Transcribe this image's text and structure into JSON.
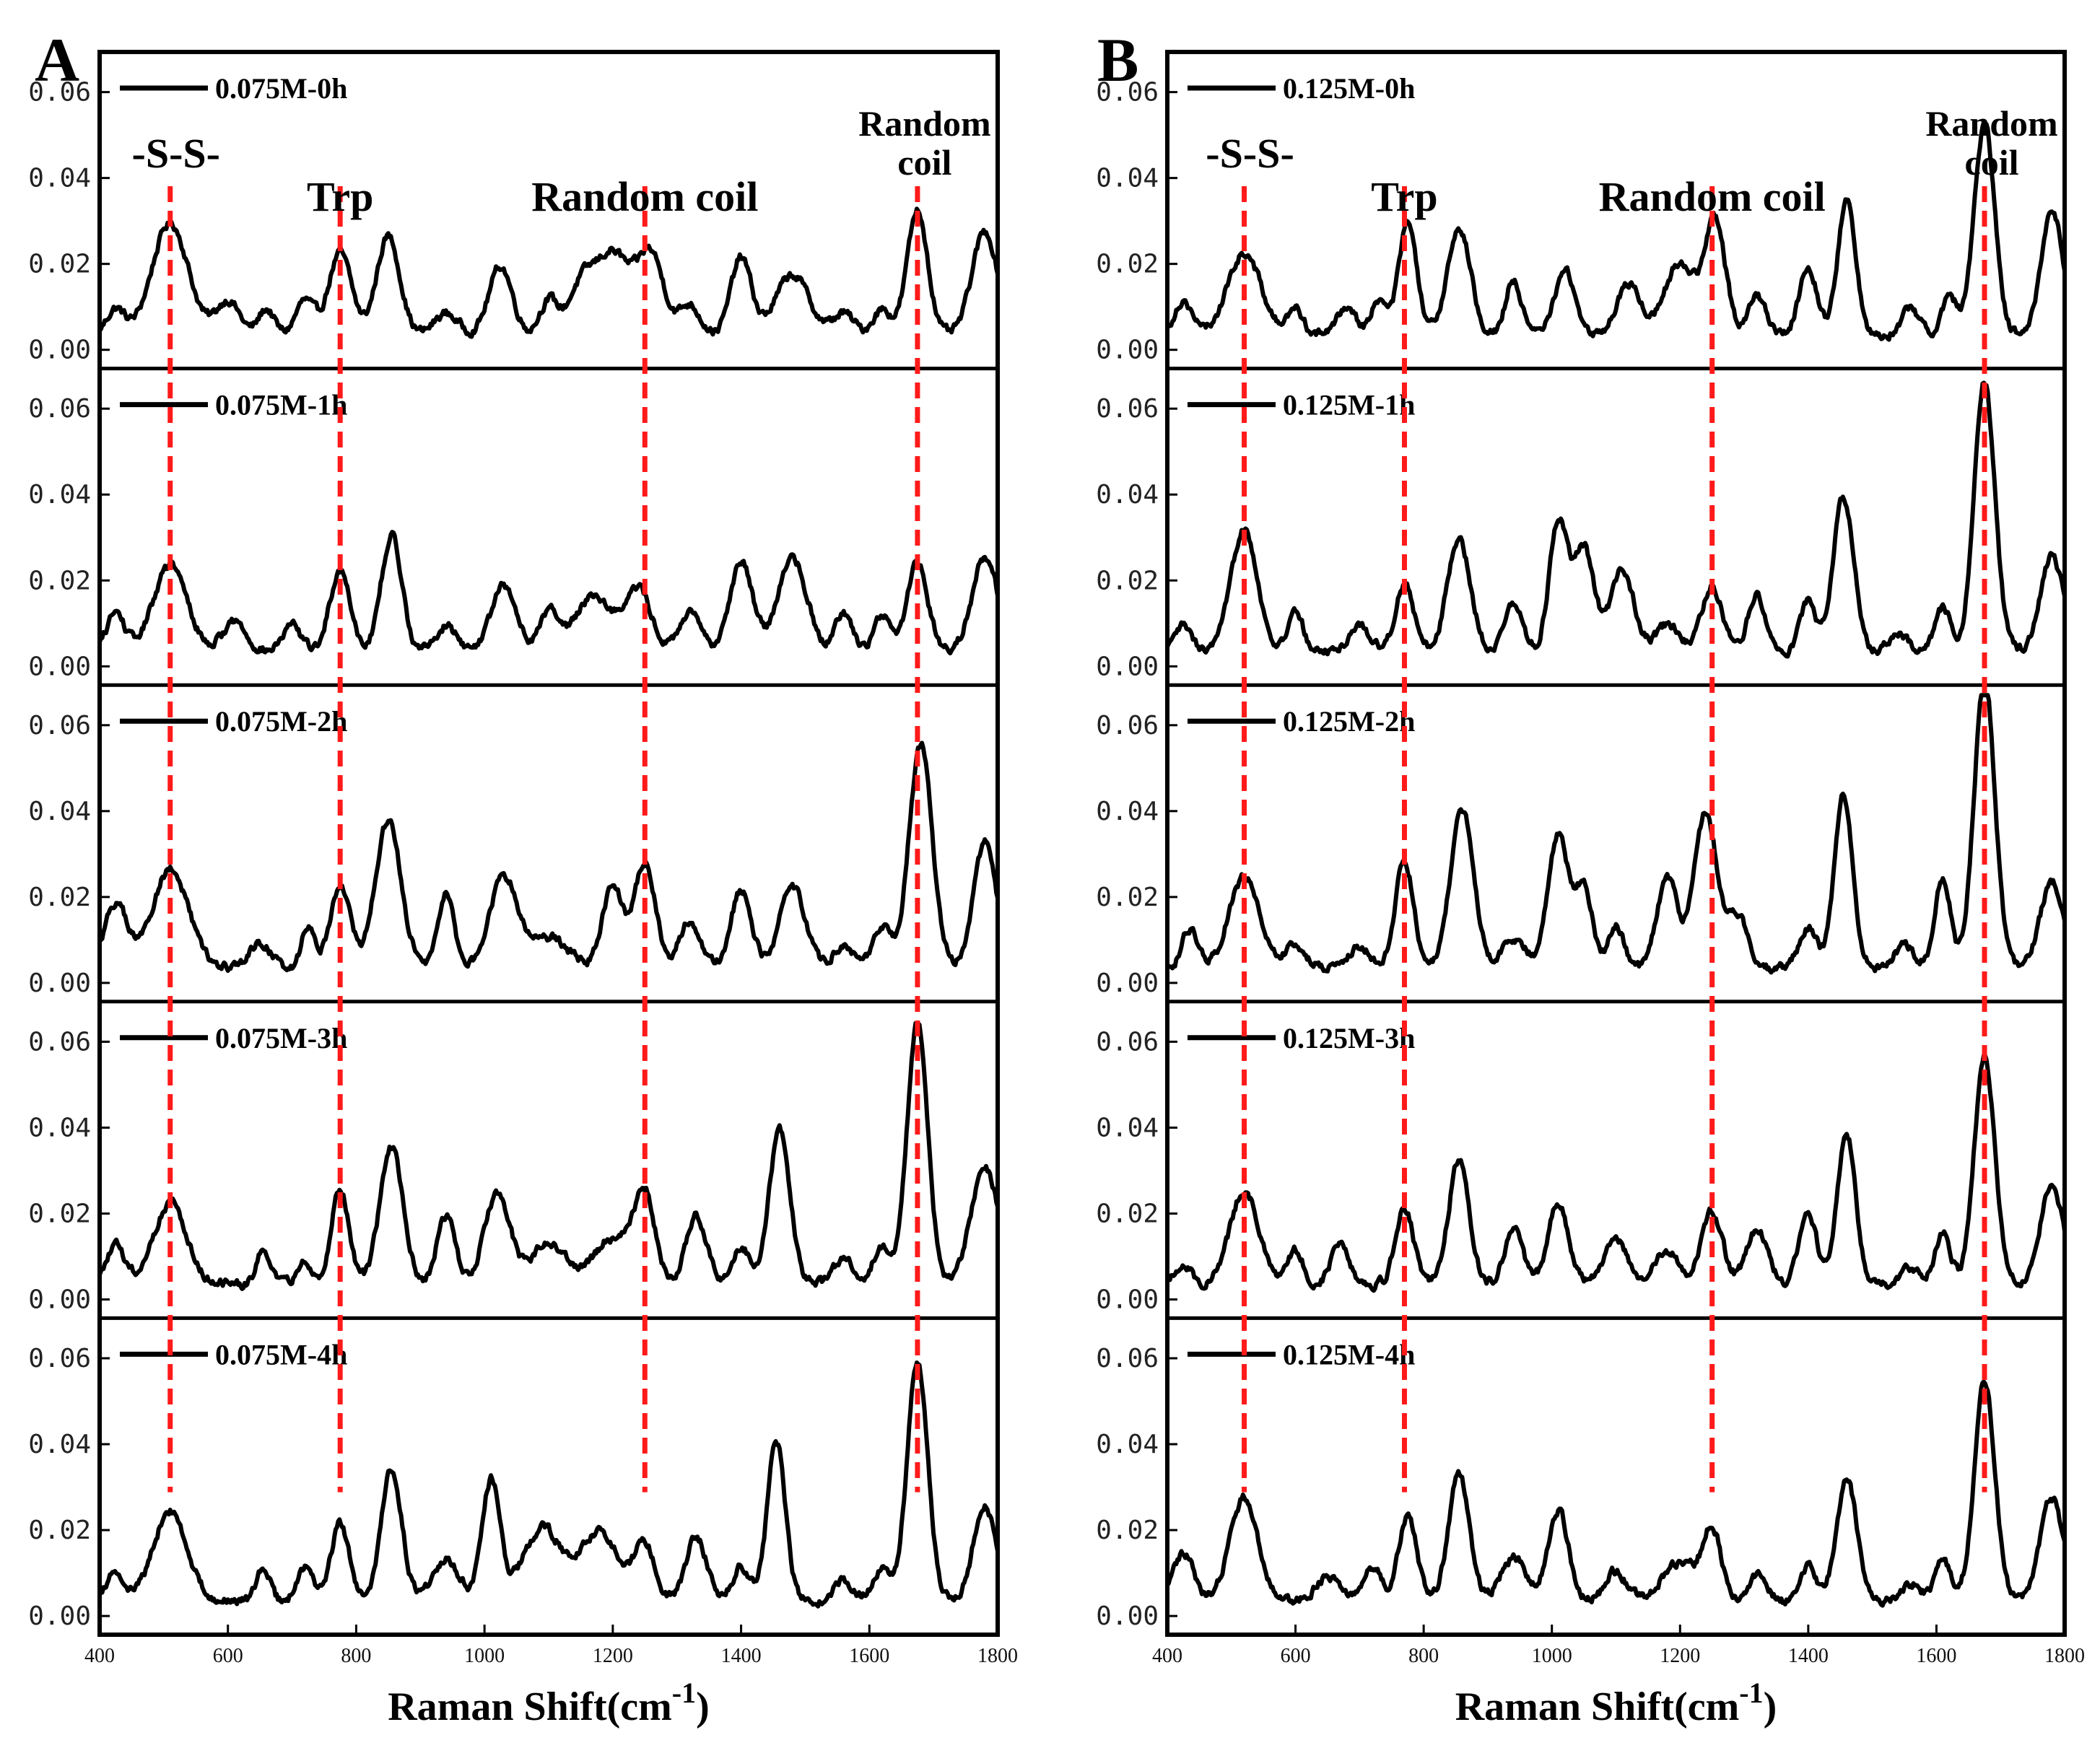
{
  "chart_data": [
    {
      "type": "line",
      "panel_label": "A",
      "xlabel": "Raman Shift(cm",
      "xlabel_sup": "-1",
      "xlabel_close": ")",
      "xlim": [
        400,
        1800
      ],
      "ylim": [
        -0.002,
        0.068
      ],
      "xticks": [
        "400",
        "600",
        "800",
        "1000",
        "1200",
        "1400",
        "1600",
        "1800"
      ],
      "yticks": [
        "0.00",
        "0.02",
        "0.04",
        "0.06"
      ],
      "annotations": [
        {
          "text": "-S-S-",
          "x": 510
        },
        {
          "text": "Trp",
          "x": 775
        },
        {
          "text": "Random coil",
          "x": 1250
        },
        {
          "text_lines": [
            "Random",
            "coil"
          ],
          "x": 1675
        }
      ],
      "guide_lines_x": [
        510,
        775,
        1250,
        1675
      ],
      "series": [
        {
          "name": "0.075M-0h",
          "peaks": [
            [
              425,
              0.006,
              14
            ],
            [
              510,
              0.026,
              28
            ],
            [
              600,
              0.008,
              18
            ],
            [
              660,
              0.006,
              12
            ],
            [
              720,
              0.008,
              14
            ],
            [
              775,
              0.019,
              18
            ],
            [
              850,
              0.023,
              18
            ],
            [
              940,
              0.005,
              18
            ],
            [
              1025,
              0.016,
              18
            ],
            [
              1100,
              0.008,
              14
            ],
            [
              1150,
              0.01,
              20
            ],
            [
              1200,
              0.019,
              28
            ],
            [
              1260,
              0.018,
              20
            ],
            [
              1320,
              0.007,
              16
            ],
            [
              1400,
              0.018,
              16
            ],
            [
              1480,
              0.014,
              26
            ],
            [
              1560,
              0.005,
              16
            ],
            [
              1620,
              0.006,
              14
            ],
            [
              1675,
              0.029,
              16
            ],
            [
              1780,
              0.024,
              20
            ]
          ]
        },
        {
          "name": "0.075M-1h",
          "peaks": [
            [
              425,
              0.009,
              14
            ],
            [
              510,
              0.02,
              26
            ],
            [
              610,
              0.007,
              18
            ],
            [
              700,
              0.006,
              14
            ],
            [
              775,
              0.019,
              16
            ],
            [
              855,
              0.027,
              16
            ],
            [
              940,
              0.006,
              16
            ],
            [
              1030,
              0.015,
              20
            ],
            [
              1100,
              0.009,
              14
            ],
            [
              1170,
              0.013,
              30
            ],
            [
              1240,
              0.014,
              20
            ],
            [
              1320,
              0.009,
              16
            ],
            [
              1400,
              0.021,
              18
            ],
            [
              1480,
              0.022,
              22
            ],
            [
              1560,
              0.009,
              14
            ],
            [
              1620,
              0.009,
              12
            ],
            [
              1675,
              0.021,
              16
            ],
            [
              1780,
              0.022,
              20
            ]
          ]
        },
        {
          "name": "0.075M-2h",
          "peaks": [
            [
              425,
              0.015,
              18
            ],
            [
              510,
              0.023,
              28
            ],
            [
              650,
              0.006,
              16
            ],
            [
              725,
              0.01,
              10
            ],
            [
              775,
              0.019,
              16
            ],
            [
              850,
              0.034,
              20
            ],
            [
              940,
              0.018,
              12
            ],
            [
              1030,
              0.021,
              22
            ],
            [
              1100,
              0.007,
              30
            ],
            [
              1200,
              0.019,
              16
            ],
            [
              1250,
              0.025,
              16
            ],
            [
              1320,
              0.011,
              16
            ],
            [
              1400,
              0.018,
              16
            ],
            [
              1480,
              0.019,
              20
            ],
            [
              1560,
              0.005,
              16
            ],
            [
              1620,
              0.009,
              14
            ],
            [
              1680,
              0.052,
              18
            ],
            [
              1780,
              0.029,
              18
            ]
          ]
        },
        {
          "name": "0.075M-3h",
          "peaks": [
            [
              425,
              0.009,
              14
            ],
            [
              510,
              0.019,
              26
            ],
            [
              655,
              0.009,
              10
            ],
            [
              720,
              0.005,
              12
            ],
            [
              775,
              0.022,
              14
            ],
            [
              855,
              0.032,
              18
            ],
            [
              940,
              0.016,
              14
            ],
            [
              1020,
              0.021,
              20
            ],
            [
              1100,
              0.01,
              26
            ],
            [
              1200,
              0.011,
              30
            ],
            [
              1250,
              0.02,
              16
            ],
            [
              1330,
              0.016,
              16
            ],
            [
              1400,
              0.009,
              14
            ],
            [
              1460,
              0.036,
              16
            ],
            [
              1560,
              0.006,
              16
            ],
            [
              1620,
              0.009,
              14
            ],
            [
              1675,
              0.061,
              16
            ],
            [
              1780,
              0.027,
              22
            ]
          ]
        },
        {
          "name": "0.075M-4h",
          "peaks": [
            [
              425,
              0.007,
              14
            ],
            [
              510,
              0.021,
              26
            ],
            [
              655,
              0.008,
              10
            ],
            [
              720,
              0.008,
              12
            ],
            [
              775,
              0.018,
              14
            ],
            [
              855,
              0.031,
              16
            ],
            [
              940,
              0.01,
              20
            ],
            [
              1010,
              0.028,
              14
            ],
            [
              1090,
              0.017,
              30
            ],
            [
              1180,
              0.016,
              30
            ],
            [
              1250,
              0.013,
              16
            ],
            [
              1330,
              0.015,
              16
            ],
            [
              1400,
              0.008,
              14
            ],
            [
              1455,
              0.037,
              14
            ],
            [
              1560,
              0.005,
              14
            ],
            [
              1620,
              0.008,
              14
            ],
            [
              1675,
              0.056,
              16
            ],
            [
              1780,
              0.022,
              18
            ]
          ]
        }
      ]
    },
    {
      "type": "line",
      "panel_label": "B",
      "xlabel": "Raman Shift(cm",
      "xlabel_sup": "-1",
      "xlabel_close": ")",
      "xlim": [
        400,
        1800
      ],
      "ylim": [
        -0.002,
        0.068
      ],
      "xticks": [
        "400",
        "600",
        "800",
        "1000",
        "1200",
        "1400",
        "1600",
        "1800"
      ],
      "yticks": [
        "0.00",
        "0.02",
        "0.04",
        "0.06"
      ],
      "annotations": [
        {
          "text": "-S-S-",
          "x": 520
        },
        {
          "text": "Trp",
          "x": 770
        },
        {
          "text": "Random coil",
          "x": 1250
        },
        {
          "text_lines": [
            "Random",
            "coil"
          ],
          "x": 1675
        }
      ],
      "guide_lines_x": [
        520,
        770,
        1250,
        1675
      ],
      "series": [
        {
          "name": "0.125M-0h",
          "peaks": [
            [
              425,
              0.008,
              14
            ],
            [
              520,
              0.019,
              26
            ],
            [
              600,
              0.006,
              12
            ],
            [
              680,
              0.007,
              14
            ],
            [
              730,
              0.008,
              12
            ],
            [
              775,
              0.026,
              14
            ],
            [
              855,
              0.025,
              18
            ],
            [
              940,
              0.013,
              12
            ],
            [
              1020,
              0.015,
              16
            ],
            [
              1120,
              0.012,
              18
            ],
            [
              1200,
              0.017,
              24
            ],
            [
              1255,
              0.026,
              16
            ],
            [
              1320,
              0.009,
              14
            ],
            [
              1400,
              0.016,
              14
            ],
            [
              1460,
              0.031,
              14
            ],
            [
              1560,
              0.006,
              14
            ],
            [
              1620,
              0.009,
              12
            ],
            [
              1675,
              0.049,
              16
            ],
            [
              1780,
              0.03,
              16
            ]
          ]
        },
        {
          "name": "0.125M-1h",
          "peaks": [
            [
              425,
              0.006,
              12
            ],
            [
              520,
              0.029,
              20
            ],
            [
              600,
              0.009,
              12
            ],
            [
              700,
              0.006,
              16
            ],
            [
              770,
              0.016,
              14
            ],
            [
              855,
              0.026,
              18
            ],
            [
              940,
              0.011,
              14
            ],
            [
              1010,
              0.03,
              14
            ],
            [
              1050,
              0.024,
              16
            ],
            [
              1110,
              0.019,
              18
            ],
            [
              1180,
              0.006,
              18
            ],
            [
              1250,
              0.015,
              16
            ],
            [
              1320,
              0.013,
              14
            ],
            [
              1400,
              0.012,
              12
            ],
            [
              1455,
              0.036,
              16
            ],
            [
              1540,
              0.004,
              14
            ],
            [
              1610,
              0.01,
              12
            ],
            [
              1675,
              0.063,
              16
            ],
            [
              1780,
              0.022,
              18
            ]
          ]
        },
        {
          "name": "0.125M-2h",
          "peaks": [
            [
              435,
              0.009,
              12
            ],
            [
              520,
              0.021,
              24
            ],
            [
              600,
              0.005,
              16
            ],
            [
              700,
              0.005,
              16
            ],
            [
              770,
              0.025,
              14
            ],
            [
              860,
              0.037,
              18
            ],
            [
              940,
              0.007,
              18
            ],
            [
              1010,
              0.031,
              16
            ],
            [
              1050,
              0.018,
              14
            ],
            [
              1100,
              0.01,
              12
            ],
            [
              1180,
              0.021,
              16
            ],
            [
              1240,
              0.036,
              18
            ],
            [
              1290,
              0.012,
              16
            ],
            [
              1400,
              0.009,
              14
            ],
            [
              1455,
              0.04,
              14
            ],
            [
              1550,
              0.005,
              16
            ],
            [
              1610,
              0.021,
              12
            ],
            [
              1675,
              0.068,
              16
            ],
            [
              1780,
              0.02,
              18
            ]
          ]
        },
        {
          "name": "0.125M-3h",
          "peaks": [
            [
              425,
              0.005,
              12
            ],
            [
              520,
              0.022,
              22
            ],
            [
              600,
              0.008,
              12
            ],
            [
              670,
              0.01,
              14
            ],
            [
              770,
              0.018,
              14
            ],
            [
              855,
              0.029,
              16
            ],
            [
              940,
              0.013,
              14
            ],
            [
              1010,
              0.019,
              16
            ],
            [
              1100,
              0.011,
              18
            ],
            [
              1180,
              0.008,
              18
            ],
            [
              1250,
              0.017,
              16
            ],
            [
              1320,
              0.013,
              16
            ],
            [
              1400,
              0.016,
              14
            ],
            [
              1460,
              0.035,
              14
            ],
            [
              1560,
              0.004,
              14
            ],
            [
              1610,
              0.012,
              12
            ],
            [
              1675,
              0.053,
              16
            ],
            [
              1780,
              0.023,
              18
            ]
          ]
        },
        {
          "name": "0.125M-4h",
          "peaks": [
            [
              425,
              0.011,
              16
            ],
            [
              520,
              0.024,
              22
            ],
            [
              650,
              0.006,
              18
            ],
            [
              720,
              0.008,
              14
            ],
            [
              775,
              0.02,
              14
            ],
            [
              855,
              0.03,
              16
            ],
            [
              940,
              0.01,
              20
            ],
            [
              1010,
              0.021,
              16
            ],
            [
              1100,
              0.007,
              16
            ],
            [
              1200,
              0.009,
              28
            ],
            [
              1250,
              0.016,
              14
            ],
            [
              1320,
              0.006,
              14
            ],
            [
              1400,
              0.008,
              12
            ],
            [
              1460,
              0.028,
              16
            ],
            [
              1560,
              0.004,
              14
            ],
            [
              1610,
              0.01,
              12
            ],
            [
              1675,
              0.051,
              16
            ],
            [
              1780,
              0.024,
              18
            ]
          ]
        }
      ]
    }
  ]
}
